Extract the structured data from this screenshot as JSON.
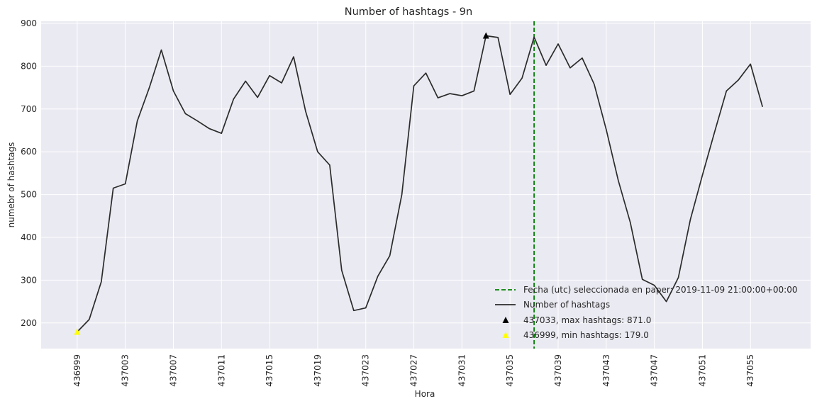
{
  "chart_data": {
    "type": "line",
    "title": "Number of hashtags - 9n",
    "xlabel": "Hora",
    "ylabel": "numebr of hashtags",
    "xlim": [
      436996,
      437060
    ],
    "ylim": [
      140,
      905
    ],
    "x_ticks": [
      436999,
      437003,
      437007,
      437011,
      437015,
      437019,
      437023,
      437027,
      437031,
      437035,
      437039,
      437043,
      437047,
      437051,
      437055
    ],
    "y_ticks": [
      200,
      300,
      400,
      500,
      600,
      700,
      800,
      900
    ],
    "grid": true,
    "series": [
      {
        "name": "Number of hashtags",
        "color": "#2b2b2b",
        "x": [
          436999,
          437000,
          437001,
          437002,
          437003,
          437004,
          437005,
          437006,
          437007,
          437008,
          437009,
          437010,
          437011,
          437012,
          437013,
          437014,
          437015,
          437016,
          437017,
          437018,
          437019,
          437020,
          437021,
          437022,
          437023,
          437024,
          437025,
          437026,
          437027,
          437028,
          437029,
          437030,
          437031,
          437032,
          437033,
          437034,
          437035,
          437036,
          437037,
          437038,
          437039,
          437040,
          437041,
          437042,
          437043,
          437044,
          437045,
          437046,
          437047,
          437048,
          437049,
          437050,
          437051,
          437052,
          437053,
          437054,
          437055,
          437056
        ],
        "y": [
          179,
          208,
          296,
          515,
          525,
          672,
          750,
          838,
          742,
          689,
          672,
          654,
          643,
          723,
          765,
          727,
          778,
          761,
          822,
          694,
          600,
          569,
          323,
          229,
          235,
          309,
          357,
          500,
          754,
          784,
          726,
          736,
          731,
          742,
          871,
          867,
          734,
          772,
          868,
          802,
          852,
          796,
          819,
          758,
          652,
          533,
          435,
          302,
          288,
          250,
          306,
          442,
          545,
          645,
          742,
          768,
          805,
          705
        ]
      }
    ],
    "reference_line": {
      "label": "Fecha (utc) seleccionada en paper: 2019-11-09 21:00:00+00:00",
      "x": 437037,
      "color": "#008000",
      "style": "dashed"
    },
    "markers": [
      {
        "label": "437033, max hashtags: 871.0",
        "x": 437033,
        "y": 871,
        "color": "#000000",
        "symbol": "triangle"
      },
      {
        "label": "436999, min hashtags: 179.0",
        "x": 436999,
        "y": 179,
        "color": "#ffff00",
        "symbol": "triangle"
      }
    ],
    "legend_placement": "lower-right",
    "colors": {
      "plot_background": "#eaeaf2",
      "grid": "#ffffff"
    }
  }
}
